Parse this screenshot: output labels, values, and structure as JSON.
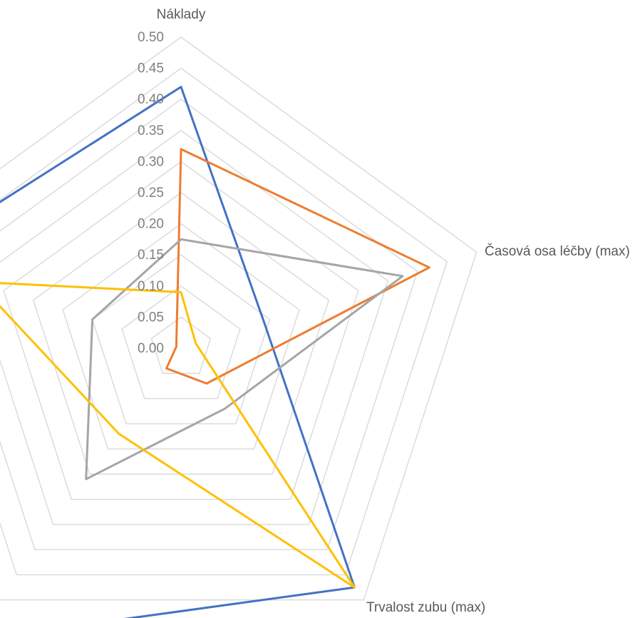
{
  "chart_data": {
    "type": "radar",
    "categories": [
      "Náklady",
      "Časová osa léčby (max)",
      "Trvalost zubu (max)",
      "",
      ""
    ],
    "rlim": [
      0,
      0.5
    ],
    "ticks": [
      "0.00",
      "0.05",
      "0.10",
      "0.15",
      "0.20",
      "0.25",
      "0.30",
      "0.35",
      "0.40",
      "0.45",
      "0.50"
    ],
    "grid": true,
    "legend": "none",
    "series": [
      {
        "color": "#4472C4",
        "values": [
          0.42,
          0.14,
          0.475,
          0.58,
          0.46
        ]
      },
      {
        "color": "#ED7D31",
        "values": [
          0.32,
          0.42,
          0.07,
          0.04,
          0.008
        ]
      },
      {
        "color": "#A5A5A5",
        "values": [
          0.175,
          0.375,
          0.12,
          0.26,
          0.15
        ]
      },
      {
        "color": "#FFC000",
        "values": [
          0.09,
          0.025,
          0.475,
          0.17,
          0.345
        ]
      }
    ]
  }
}
